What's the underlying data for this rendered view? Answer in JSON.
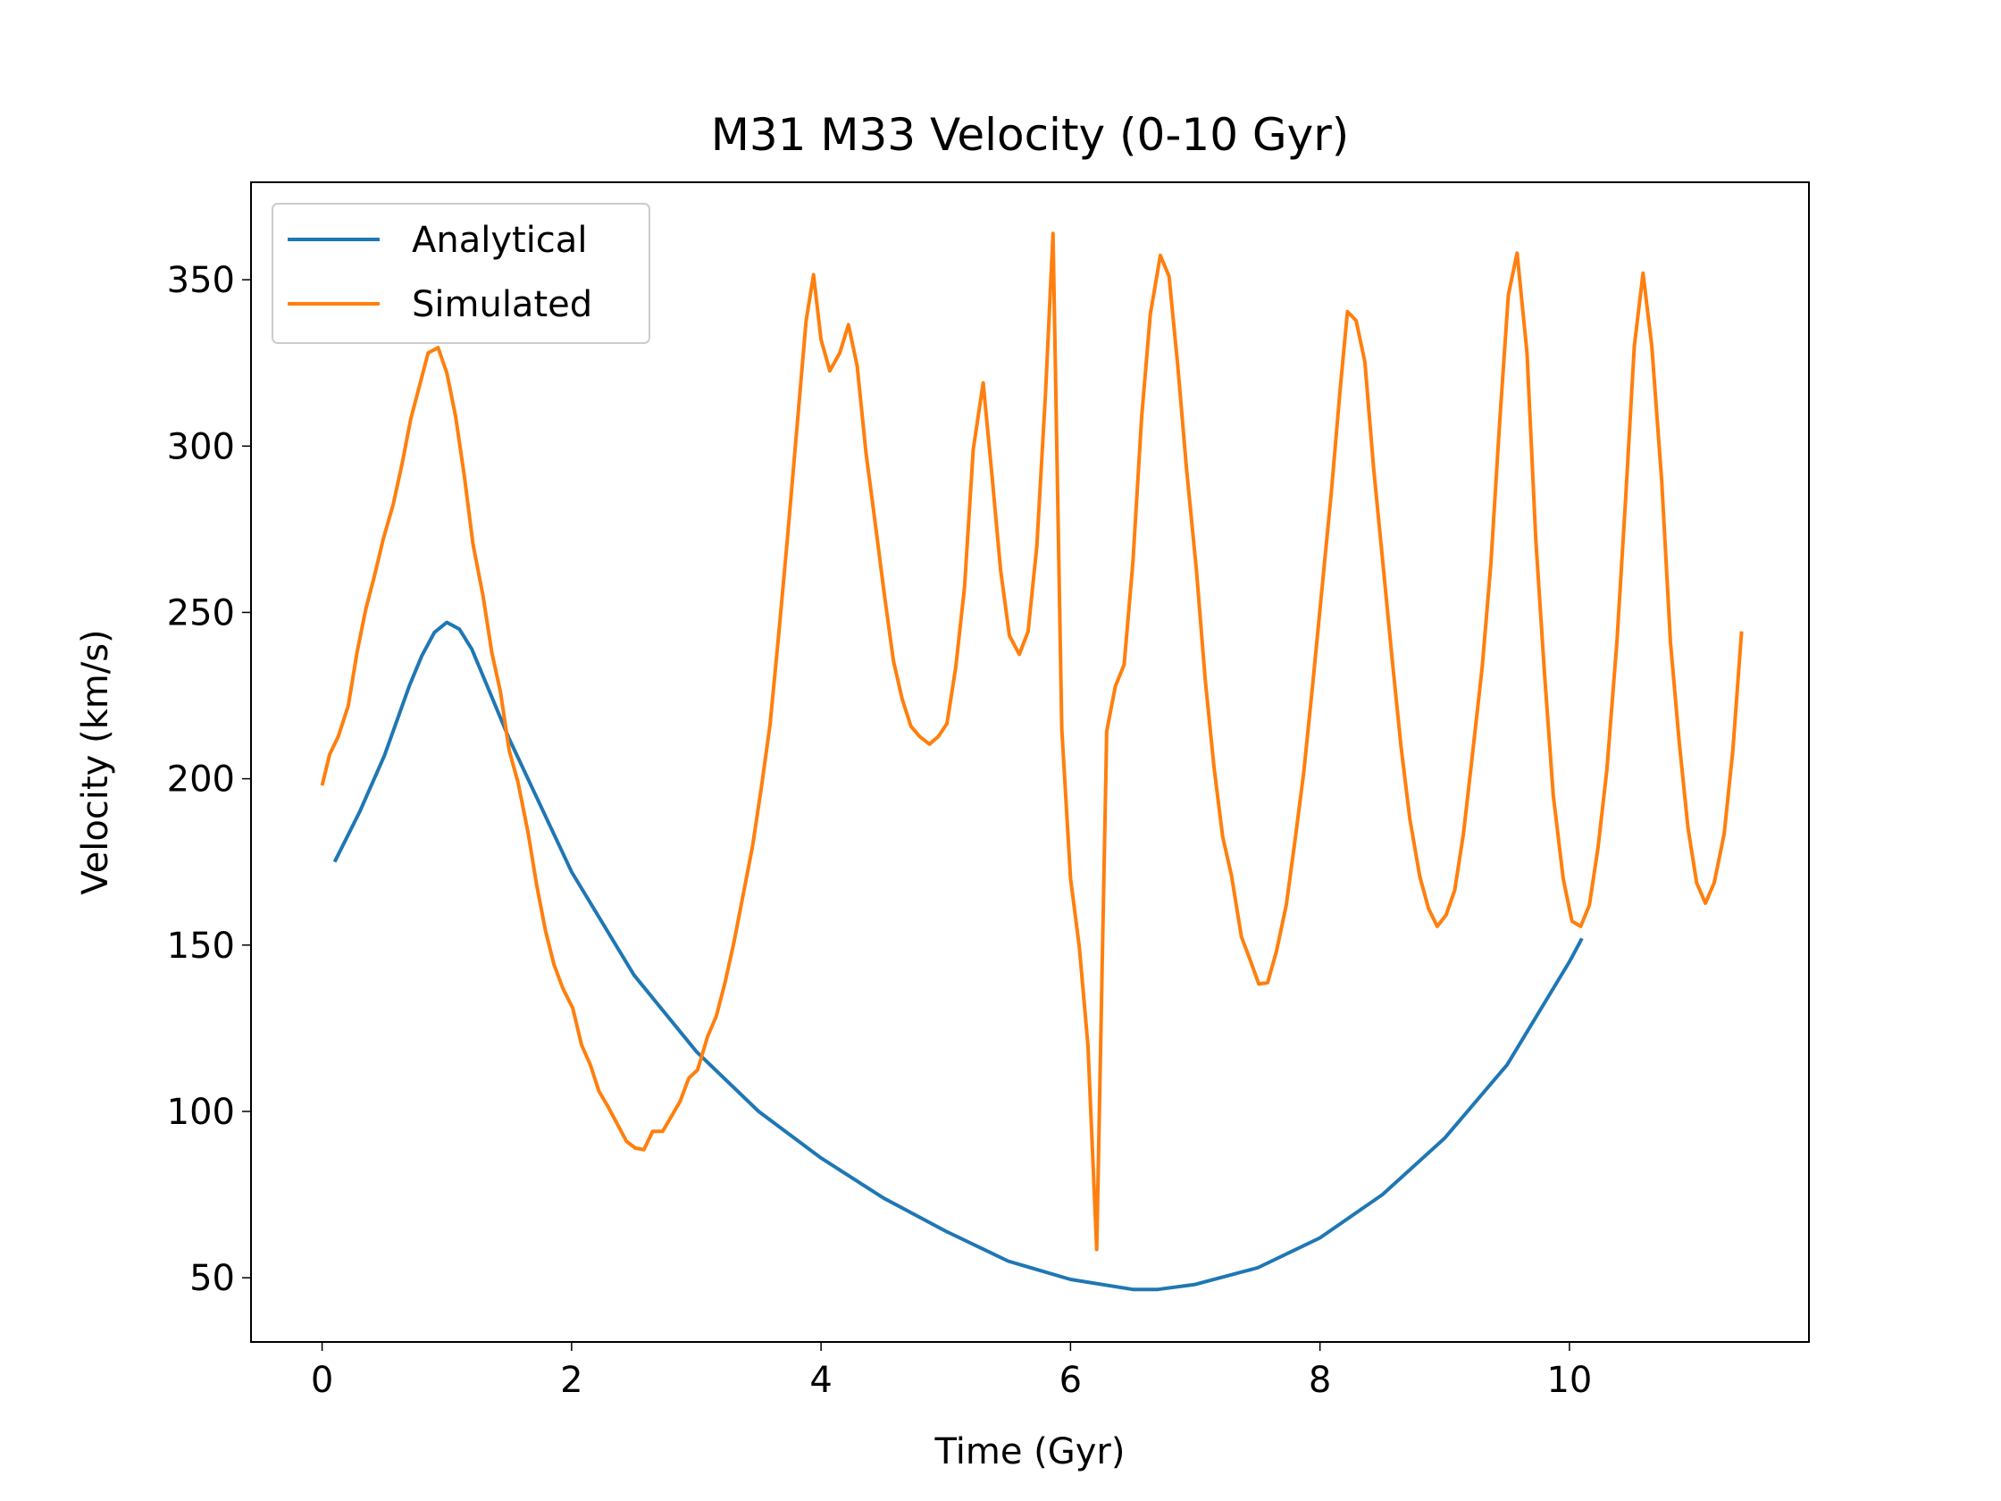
{
  "chart_data": {
    "type": "line",
    "title": "M31 M33 Velocity (0-10 Gyr)",
    "x_label": "Time (Gyr)",
    "y_label": "Velocity (km/s)",
    "xlim": [
      -0.57,
      11.92
    ],
    "ylim": [
      30.7,
      379.3
    ],
    "xticks": [
      0,
      2,
      4,
      6,
      8,
      10
    ],
    "yticks": [
      50,
      100,
      150,
      200,
      250,
      300,
      350
    ],
    "legend": "upper left",
    "grid": false,
    "series": [
      {
        "name": "Analytical",
        "color": "#1f77b4",
        "x": [
          0.1,
          0.3,
          0.5,
          0.7,
          0.8,
          0.9,
          1.0,
          1.1,
          1.2,
          1.3,
          1.5,
          2.0,
          2.5,
          3.0,
          3.5,
          4.0,
          4.5,
          5.0,
          5.5,
          6.0,
          6.5,
          6.7,
          7.0,
          7.5,
          8.0,
          8.5,
          9.0,
          9.5,
          10.0,
          10.1
        ],
        "values": [
          175,
          190,
          207,
          228,
          237,
          244,
          247,
          245,
          239,
          230,
          212,
          172,
          141,
          118,
          100,
          86,
          74,
          64,
          55,
          49.5,
          46.5,
          46.5,
          48,
          53,
          62,
          75,
          92,
          114,
          145,
          152
        ]
      },
      {
        "name": "Simulated",
        "color": "#ff7f0e",
        "x": [
          0,
          0.06,
          0.13,
          0.21,
          0.28,
          0.35,
          0.42,
          0.49,
          0.57,
          0.64,
          0.71,
          0.78,
          0.85,
          0.93,
          1.0,
          1.07,
          1.14,
          1.21,
          1.29,
          1.36,
          1.43,
          1.5,
          1.57,
          1.65,
          1.72,
          1.79,
          1.86,
          1.93,
          2.01,
          2.08,
          2.15,
          2.22,
          2.29,
          2.37,
          2.44,
          2.51,
          2.58,
          2.65,
          2.73,
          2.8,
          2.87,
          2.94,
          3.01,
          3.09,
          3.16,
          3.23,
          3.3,
          3.37,
          3.45,
          3.52,
          3.59,
          3.66,
          3.73,
          3.81,
          3.88,
          3.94,
          4.0,
          4.07,
          4.15,
          4.22,
          4.29,
          4.36,
          4.43,
          4.51,
          4.58,
          4.65,
          4.72,
          4.79,
          4.87,
          4.94,
          5.01,
          5.08,
          5.15,
          5.22,
          5.3,
          5.37,
          5.44,
          5.51,
          5.59,
          5.66,
          5.73,
          5.8,
          5.86,
          5.93,
          6.0,
          6.07,
          6.14,
          6.21,
          6.29,
          6.36,
          6.43,
          6.5,
          6.57,
          6.64,
          6.72,
          6.79,
          6.86,
          6.93,
          7.01,
          7.08,
          7.15,
          7.22,
          7.29,
          7.37,
          7.44,
          7.51,
          7.58,
          7.65,
          7.73,
          7.8,
          7.87,
          7.94,
          8.01,
          8.09,
          8.16,
          8.22,
          8.29,
          8.36,
          8.43,
          8.51,
          8.58,
          8.65,
          8.72,
          8.8,
          8.87,
          8.94,
          9.01,
          9.08,
          9.15,
          9.22,
          9.3,
          9.37,
          9.44,
          9.51,
          9.58,
          9.66,
          9.73,
          9.8,
          9.87,
          9.95,
          10.02,
          10.09,
          10.16,
          10.23,
          10.3,
          10.38,
          10.45,
          10.52,
          10.59,
          10.66,
          10.74,
          10.81,
          10.88,
          10.95,
          11.02,
          11.09,
          11.16,
          11.24,
          11.31,
          11.38
        ],
        "values": [
          198,
          207.3,
          212.7,
          222,
          238,
          251,
          261,
          272,
          282.5,
          294.5,
          308,
          318,
          328,
          329.6,
          322,
          309,
          291,
          270.5,
          255,
          238,
          226,
          208.5,
          199,
          184,
          168,
          154.5,
          144,
          137,
          131,
          120,
          114,
          106,
          101.6,
          96,
          91,
          89,
          88.5,
          94,
          94,
          98.5,
          103,
          110,
          112.5,
          122.5,
          128.6,
          138.7,
          150.6,
          164,
          179.5,
          197,
          216,
          243,
          272,
          307,
          337.7,
          351.5,
          332,
          322.6,
          328,
          336.5,
          324,
          298,
          278,
          254.7,
          235.5,
          224,
          215.8,
          212.7,
          210.4,
          212.7,
          216.6,
          233.5,
          257.5,
          299,
          319,
          291.4,
          262.5,
          243,
          237.4,
          244.3,
          270,
          316.4,
          363.9,
          215,
          170,
          149.5,
          119.8,
          58.5,
          214.3,
          227.8,
          234.3,
          265,
          308.7,
          339.6,
          357.3,
          351,
          324,
          293.3,
          262.5,
          229.7,
          203.5,
          182.6,
          171,
          152.5,
          145.6,
          138.3,
          138.7,
          148,
          162,
          181.5,
          202,
          227.8,
          254.7,
          285.6,
          316.4,
          340.4,
          337.7,
          325.3,
          293.3,
          262.5,
          235.5,
          209.6,
          188,
          170.7,
          161,
          155.6,
          159,
          166.4,
          183.4,
          206.5,
          233.5,
          264.4,
          306.8,
          345.4,
          358,
          328,
          272,
          231.6,
          195,
          170,
          157.2,
          155.6,
          162,
          179.5,
          202.7,
          241,
          283.7,
          330,
          352,
          330,
          289.5,
          241,
          211,
          185.3,
          168.7,
          162.6,
          168.7,
          183.4,
          208.5,
          244.3
        ]
      }
    ]
  }
}
